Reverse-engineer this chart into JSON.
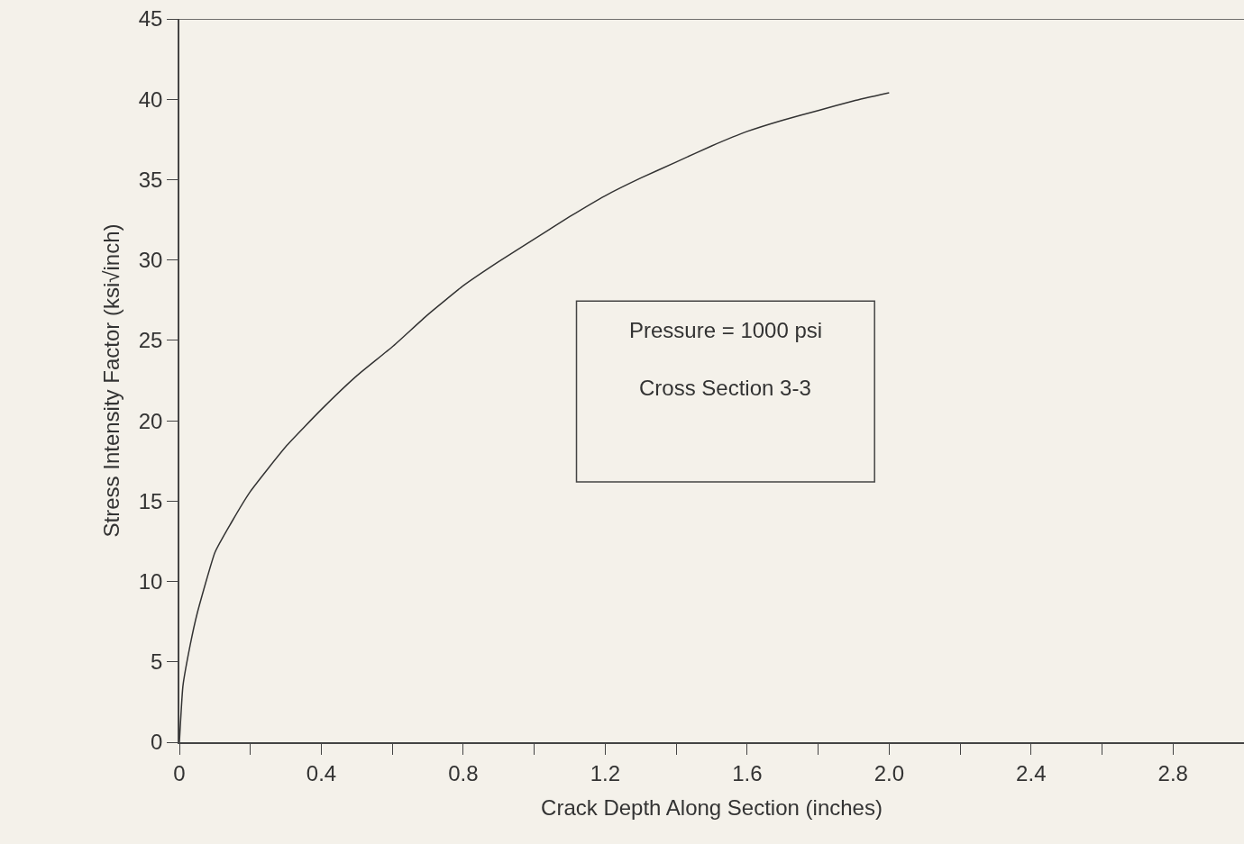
{
  "chart_data": {
    "type": "line",
    "xlabel": "Crack Depth Along Section (inches)",
    "ylabel": "Stress Intensity Factor (ksi√inch)",
    "x": [
      0,
      0.01,
      0.03,
      0.05,
      0.1,
      0.15,
      0.2,
      0.3,
      0.4,
      0.5,
      0.6,
      0.7,
      0.8,
      0.9,
      1.0,
      1.1,
      1.2,
      1.3,
      1.4,
      1.5,
      1.6,
      1.7,
      1.8,
      1.9,
      2.0
    ],
    "series": [
      {
        "color": "#333333",
        "values": [
          0,
          3.5,
          6,
          8,
          11.8,
          13.8,
          15.6,
          18.4,
          20.7,
          22.8,
          24.6,
          26.6,
          28.4,
          29.9,
          31.3,
          32.7,
          34.0,
          35.1,
          36.1,
          37.1,
          38.0,
          38.7,
          39.3,
          39.9,
          40.4
        ]
      }
    ],
    "xlim": [
      0,
      3
    ],
    "ylim": [
      0,
      45
    ],
    "xticks": [
      0,
      {
        "value": 0.2,
        "label": null
      },
      0.4,
      {
        "value": 0.6,
        "label": null
      },
      0.8,
      {
        "value": 1.0,
        "label": null
      },
      1.2,
      {
        "value": 1.4,
        "label": null
      },
      1.6,
      {
        "value": 1.8,
        "label": null
      },
      {
        "value": 2.0,
        "label": "2.0"
      },
      {
        "value": 2.2,
        "label": null
      },
      2.4,
      {
        "value": 2.6,
        "label": null
      },
      2.8
    ],
    "yticks": [
      0,
      5,
      10,
      15,
      20,
      25,
      30,
      35,
      40,
      45
    ],
    "grid": false,
    "legend": false,
    "marker": "none",
    "line_style": "solid",
    "annotations": [
      "Pressure = 1000 psi",
      "Cross Section 3-3"
    ]
  }
}
